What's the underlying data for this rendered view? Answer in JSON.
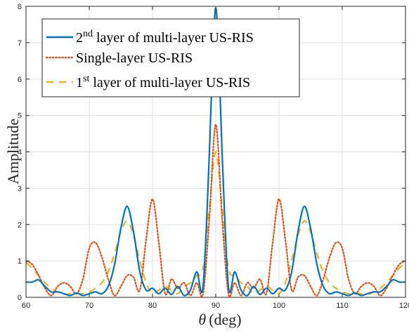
{
  "chart_data": {
    "type": "line",
    "xlabel": "θ (deg)",
    "xlabel_symbol": "θ",
    "xlabel_unit": "(deg)",
    "ylabel": "Amplitude",
    "xlim": [
      60,
      120
    ],
    "ylim": [
      0,
      8
    ],
    "x_ticks": [
      60,
      70,
      80,
      90,
      100,
      110,
      120
    ],
    "y_ticks": [
      0,
      1,
      2,
      3,
      4,
      5,
      6,
      7,
      8
    ],
    "grid": true,
    "legend_position": "top-left",
    "series": [
      {
        "name": "2nd layer of multi-layer US-RIS",
        "legend_base": "2",
        "legend_sup": "nd",
        "legend_rest": " layer of multi-layer US-RIS",
        "color": "#0072BD",
        "style": "solid",
        "x": [
          60,
          61,
          62,
          63,
          64,
          65,
          66,
          67,
          68,
          69,
          70,
          71,
          72,
          73,
          74,
          75,
          76,
          77,
          78,
          79,
          80,
          81,
          82,
          83,
          84,
          85,
          86,
          87,
          88,
          89,
          89.5,
          90,
          90.5,
          91,
          92,
          93,
          94,
          95,
          96,
          97,
          98,
          99,
          100,
          101,
          102,
          103,
          104,
          105,
          106,
          107,
          108,
          109,
          110,
          111,
          112,
          113,
          114,
          115,
          116,
          117,
          118,
          119,
          120
        ],
        "y": [
          0.42,
          0.42,
          0.48,
          0.3,
          0.15,
          0.15,
          0.1,
          0.05,
          0.12,
          0.05,
          0.1,
          0.15,
          0.1,
          0.3,
          0.9,
          1.9,
          2.5,
          1.8,
          0.7,
          0.2,
          0.25,
          0.1,
          0.25,
          0.08,
          0.3,
          0.05,
          0.2,
          0.7,
          0.3,
          4.0,
          6.5,
          7.95,
          6.5,
          4.0,
          0.3,
          0.7,
          0.2,
          0.05,
          0.3,
          0.08,
          0.25,
          0.1,
          0.25,
          0.2,
          0.7,
          1.8,
          2.5,
          1.9,
          0.9,
          0.3,
          0.1,
          0.15,
          0.1,
          0.05,
          0.12,
          0.05,
          0.1,
          0.15,
          0.15,
          0.3,
          0.48,
          0.42,
          0.42
        ]
      },
      {
        "name": "Single-layer US-RIS",
        "color": "#D95319",
        "style": "dotted",
        "x": [
          60,
          61,
          62,
          63,
          64,
          65,
          66,
          67,
          68,
          69,
          70,
          71,
          72,
          73,
          74,
          75,
          76,
          77,
          78,
          79,
          80,
          81,
          82,
          83,
          84,
          85,
          86,
          87,
          88,
          89,
          90,
          91,
          92,
          93,
          94,
          95,
          96,
          97,
          98,
          99,
          100,
          101,
          102,
          103,
          104,
          105,
          106,
          107,
          108,
          109,
          110,
          111,
          112,
          113,
          114,
          115,
          116,
          117,
          118,
          119,
          120
        ],
        "y": [
          1.0,
          0.9,
          0.6,
          0.25,
          0.05,
          0.3,
          0.4,
          0.3,
          0.1,
          0.5,
          1.35,
          1.5,
          1.1,
          0.5,
          0.05,
          0.3,
          0.6,
          0.55,
          0.2,
          1.6,
          2.7,
          1.5,
          0.1,
          0.5,
          0.25,
          0.4,
          0.05,
          0.4,
          0.1,
          2.2,
          4.75,
          2.2,
          0.1,
          0.4,
          0.05,
          0.4,
          0.25,
          0.5,
          0.1,
          1.5,
          2.7,
          1.6,
          0.2,
          0.55,
          0.6,
          0.3,
          0.05,
          0.5,
          1.1,
          1.5,
          1.35,
          0.5,
          0.1,
          0.3,
          0.4,
          0.3,
          0.05,
          0.25,
          0.6,
          0.9,
          1.0
        ]
      },
      {
        "name": "1st layer of multi-layer US-RIS",
        "legend_base": "1",
        "legend_sup": "st",
        "legend_rest": " layer of multi-layer US-RIS",
        "color": "#EDB120",
        "style": "dashed",
        "x": [
          60,
          61,
          62,
          63,
          64,
          65,
          66,
          67,
          68,
          69,
          70,
          71,
          72,
          73,
          74,
          75,
          76,
          77,
          78,
          79,
          80,
          81,
          82,
          83,
          84,
          85,
          86,
          87,
          88,
          89,
          90,
          91,
          92,
          93,
          94,
          95,
          96,
          97,
          98,
          99,
          100,
          101,
          102,
          103,
          104,
          105,
          106,
          107,
          108,
          109,
          110,
          111,
          112,
          113,
          114,
          115,
          116,
          117,
          118,
          119,
          120
        ],
        "y": [
          0.95,
          0.8,
          0.6,
          0.4,
          0.25,
          0.15,
          0.08,
          0.1,
          0.1,
          0.1,
          0.15,
          0.25,
          0.4,
          0.7,
          1.2,
          1.8,
          2.1,
          1.7,
          1.0,
          0.4,
          0.1,
          0.2,
          0.3,
          0.2,
          0.1,
          0.3,
          0.4,
          0.6,
          0.8,
          2.5,
          4.0,
          2.5,
          0.8,
          0.6,
          0.4,
          0.3,
          0.1,
          0.2,
          0.3,
          0.2,
          0.1,
          0.4,
          1.0,
          1.7,
          2.1,
          1.8,
          1.2,
          0.7,
          0.4,
          0.25,
          0.15,
          0.1,
          0.1,
          0.1,
          0.08,
          0.15,
          0.25,
          0.4,
          0.6,
          0.8,
          0.95
        ]
      }
    ]
  }
}
